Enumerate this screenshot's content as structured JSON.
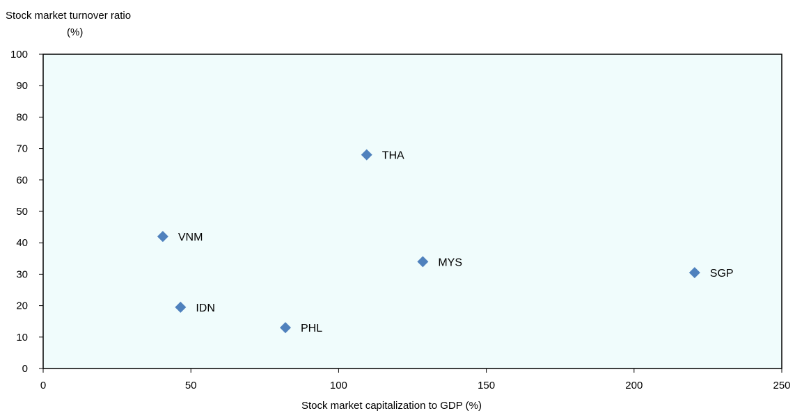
{
  "chart_data": {
    "type": "scatter",
    "ylabel_line1": "Stock market  turnover ratio",
    "ylabel_line2": "(%)",
    "xlabel": "Stock market capitalization to GDP (%)",
    "xlim": [
      0,
      250
    ],
    "ylim": [
      0,
      100
    ],
    "x_ticks": [
      0,
      50,
      100,
      150,
      200,
      250
    ],
    "y_ticks": [
      0,
      10,
      20,
      30,
      40,
      50,
      60,
      70,
      80,
      90,
      100
    ],
    "grid": false,
    "plot_background": "#f0fcfc",
    "marker_color": "#4f81bd",
    "points": [
      {
        "label": "THA",
        "x": 109.5,
        "y": 68
      },
      {
        "label": "VNM",
        "x": 40.5,
        "y": 42
      },
      {
        "label": "MYS",
        "x": 128.5,
        "y": 34
      },
      {
        "label": "SGP",
        "x": 220.5,
        "y": 30.5
      },
      {
        "label": "IDN",
        "x": 46.5,
        "y": 19.5
      },
      {
        "label": "PHL",
        "x": 82,
        "y": 13
      }
    ]
  }
}
